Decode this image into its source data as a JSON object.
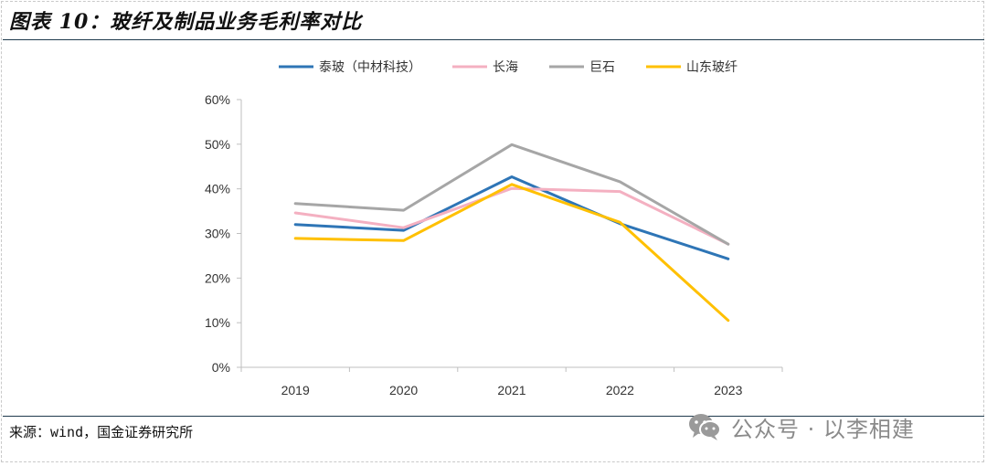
{
  "header": {
    "title": "图表 10：玻纤及制品业务毛利率对比"
  },
  "footer": {
    "source": "来源：wind，国金证券研究所",
    "watermark_text": "公众号 · 以李相建"
  },
  "colors": {
    "axis": "#bfbfbf",
    "rule": "#1f3a4d"
  },
  "chart_data": {
    "type": "line",
    "title": "",
    "xlabel": "",
    "ylabel": "",
    "categories": [
      "2019",
      "2020",
      "2021",
      "2022",
      "2023"
    ],
    "ylim": [
      0,
      60
    ],
    "yticks": [
      0,
      10,
      20,
      30,
      40,
      50,
      60
    ],
    "ytick_labels": [
      "0%",
      "10%",
      "20%",
      "30%",
      "40%",
      "50%",
      "60%"
    ],
    "grid": false,
    "legend_position": "top-center",
    "series": [
      {
        "name": "泰玻（中材科技）",
        "color": "#2e75b6",
        "values": [
          32.0,
          30.7,
          42.7,
          32.2,
          24.3
        ]
      },
      {
        "name": "长海",
        "color": "#f4b0c1",
        "values": [
          34.6,
          31.3,
          40.1,
          39.4,
          27.6
        ]
      },
      {
        "name": "巨石",
        "color": "#a6a6a6",
        "values": [
          36.7,
          35.2,
          49.9,
          41.6,
          27.6
        ]
      },
      {
        "name": "山东玻纤",
        "color": "#ffc000",
        "values": [
          28.9,
          28.4,
          41.0,
          32.5,
          10.5
        ]
      }
    ]
  }
}
